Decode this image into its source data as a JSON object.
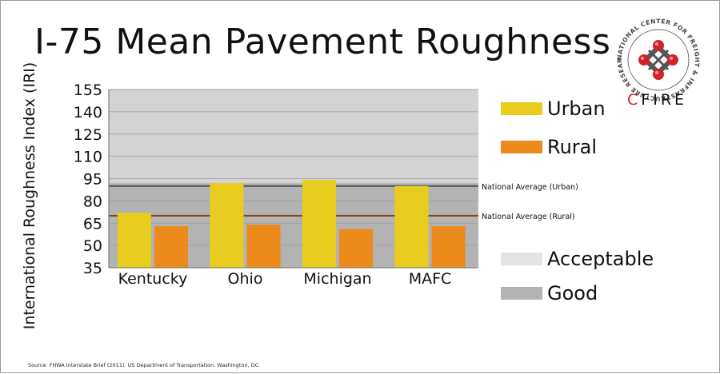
{
  "title": "I-75 Mean Pavement Roughness",
  "chart_data": {
    "type": "bar",
    "title": "I-75 Mean Pavement Roughness",
    "ylabel": "International Roughness Index (IRI)",
    "xlabel": "",
    "ylim": [
      35,
      155
    ],
    "yticks": [
      155,
      140,
      125,
      110,
      95,
      80,
      65,
      50,
      35
    ],
    "categories": [
      "Kentucky",
      "Ohio",
      "Michigan",
      "MAFC"
    ],
    "series": [
      {
        "name": "Urban",
        "color": "#e8cd1e",
        "values": [
          72,
          92,
          94,
          90
        ]
      },
      {
        "name": "Rural",
        "color": "#ec8a1c",
        "values": [
          63,
          64,
          61,
          63
        ]
      }
    ],
    "reference_lines": [
      {
        "label": "National Average (Urban)",
        "value": 90,
        "color": "#5a5a5a"
      },
      {
        "label": "National Average (Rural)",
        "value": 70,
        "color": "#8a4a1a"
      }
    ],
    "bands": [
      {
        "label": "Good",
        "from": 35,
        "to": 92,
        "color": "#b3b3b3"
      },
      {
        "label": "Acceptable",
        "from": 92,
        "to": 155,
        "color": "#d3d3d3"
      }
    ],
    "legend_position": "right"
  },
  "legend": {
    "items": [
      {
        "label": "Urban",
        "color": "#e8cd1e"
      },
      {
        "label": "Rural",
        "color": "#ec8a1c"
      },
      {
        "label": "Acceptable",
        "color": "#e3e3e3"
      },
      {
        "label": "Good",
        "color": "#b3b3b3"
      }
    ]
  },
  "logo": {
    "ring_text": "NATIONAL CENTER FOR FREIGHT & INFRASTRUCTURE RESEARCH & EDUCATION",
    "name_first": "C",
    "name_rest": "FIRE"
  },
  "source": "Source: FHWA Interstate Brief (2011). US Department of Transportation. Washington, DC."
}
